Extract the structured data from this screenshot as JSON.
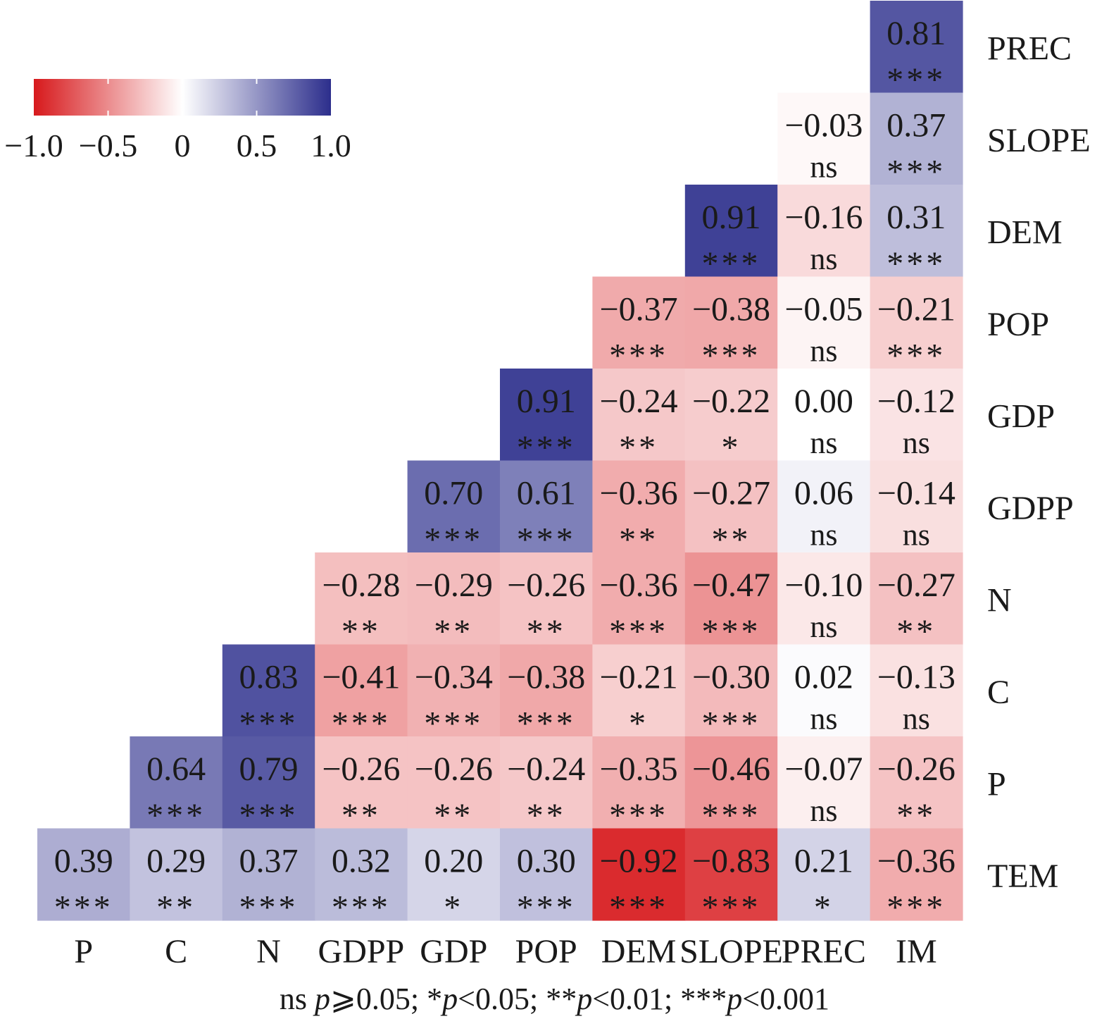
{
  "chart_data": {
    "type": "heatmap",
    "title": "",
    "columns": [
      "P",
      "C",
      "N",
      "GDPP",
      "GDP",
      "POP",
      "DEM",
      "SLOPE",
      "PREC",
      "IM"
    ],
    "rows": [
      "PREC",
      "SLOPE",
      "DEM",
      "POP",
      "GDP",
      "GDPP",
      "N",
      "C",
      "P",
      "TEM"
    ],
    "values": [
      [
        null,
        null,
        null,
        null,
        null,
        null,
        null,
        null,
        null,
        0.81
      ],
      [
        null,
        null,
        null,
        null,
        null,
        null,
        null,
        null,
        -0.03,
        0.37
      ],
      [
        null,
        null,
        null,
        null,
        null,
        null,
        null,
        0.91,
        -0.16,
        0.31
      ],
      [
        null,
        null,
        null,
        null,
        null,
        null,
        -0.37,
        -0.38,
        -0.05,
        -0.21
      ],
      [
        null,
        null,
        null,
        null,
        null,
        0.91,
        -0.24,
        -0.22,
        0.0,
        -0.12
      ],
      [
        null,
        null,
        null,
        null,
        0.7,
        0.61,
        -0.36,
        -0.27,
        0.06,
        -0.14
      ],
      [
        null,
        null,
        null,
        -0.28,
        -0.29,
        -0.26,
        -0.36,
        -0.47,
        -0.1,
        -0.27
      ],
      [
        null,
        null,
        0.83,
        -0.41,
        -0.34,
        -0.38,
        -0.21,
        -0.3,
        0.02,
        -0.13
      ],
      [
        null,
        0.64,
        0.79,
        -0.26,
        -0.26,
        -0.24,
        -0.35,
        -0.46,
        -0.07,
        -0.26
      ],
      [
        0.39,
        0.29,
        0.37,
        0.32,
        0.2,
        0.3,
        -0.92,
        -0.83,
        0.21,
        -0.36
      ]
    ],
    "significance": [
      [
        null,
        null,
        null,
        null,
        null,
        null,
        null,
        null,
        null,
        "***"
      ],
      [
        null,
        null,
        null,
        null,
        null,
        null,
        null,
        null,
        "ns",
        "***"
      ],
      [
        null,
        null,
        null,
        null,
        null,
        null,
        null,
        "***",
        "ns",
        "***"
      ],
      [
        null,
        null,
        null,
        null,
        null,
        null,
        "***",
        "***",
        "ns",
        "***"
      ],
      [
        null,
        null,
        null,
        null,
        null,
        "***",
        "**",
        "*",
        "ns",
        "ns"
      ],
      [
        null,
        null,
        null,
        null,
        "***",
        "***",
        "**",
        "**",
        "ns",
        "ns"
      ],
      [
        null,
        null,
        null,
        "**",
        "**",
        "**",
        "***",
        "***",
        "ns",
        "**"
      ],
      [
        null,
        null,
        "***",
        "***",
        "***",
        "***",
        "*",
        "***",
        "ns",
        "ns"
      ],
      [
        null,
        "***",
        "***",
        "**",
        "**",
        "**",
        "***",
        "***",
        "ns",
        "**"
      ],
      [
        "***",
        "**",
        "***",
        "***",
        "*",
        "***",
        "***",
        "***",
        "*",
        "***"
      ]
    ],
    "value_range": [
      -1.0,
      1.0
    ],
    "colorbar": {
      "ticks": [
        -1.0,
        -0.5,
        0,
        0.5,
        1.0
      ],
      "tick_labels": [
        "−1.0",
        "−0.5",
        "0",
        "0.5",
        "1.0"
      ],
      "colors": {
        "negative": "#d7191c",
        "zero": "#ffffff",
        "positive": "#2c2e8c"
      },
      "placement": "top-left"
    }
  },
  "footnote": {
    "ns_label": "ns ",
    "p": "p",
    "ns_rule": "⩾0.05; ",
    "one_star": "*",
    "one_star_rule": "<0.05; ",
    "two_star": "**",
    "two_star_rule": "<0.01; ",
    "three_star": "***",
    "three_star_rule": "<0.001"
  }
}
